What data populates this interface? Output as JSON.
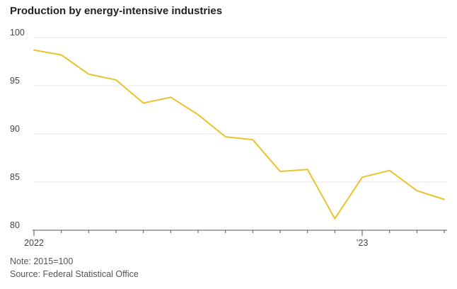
{
  "chart_data": {
    "type": "line",
    "title": "Production by energy-intensive industries",
    "xlabel": "",
    "ylabel": "",
    "ylim": [
      80,
      100
    ],
    "yticks": [
      80,
      85,
      90,
      95,
      100
    ],
    "grid": true,
    "x_tick_labels": [
      {
        "index": 0,
        "label": "2022"
      },
      {
        "index": 12,
        "label": "’23"
      }
    ],
    "categories": [
      "2022-01",
      "2022-02",
      "2022-03",
      "2022-04",
      "2022-05",
      "2022-06",
      "2022-07",
      "2022-08",
      "2022-09",
      "2022-10",
      "2022-11",
      "2022-12",
      "2023-01",
      "2023-02",
      "2023-03",
      "2023-04"
    ],
    "series": [
      {
        "name": "",
        "color": "#E8C32E",
        "values": [
          98.7,
          98.2,
          96.2,
          95.6,
          93.2,
          93.8,
          92.0,
          89.7,
          89.4,
          86.1,
          86.3,
          81.2,
          85.5,
          86.2,
          84.1,
          83.2
        ]
      }
    ]
  },
  "note": "Note: 2015=100",
  "source": "Source: Federal Statistical Office"
}
